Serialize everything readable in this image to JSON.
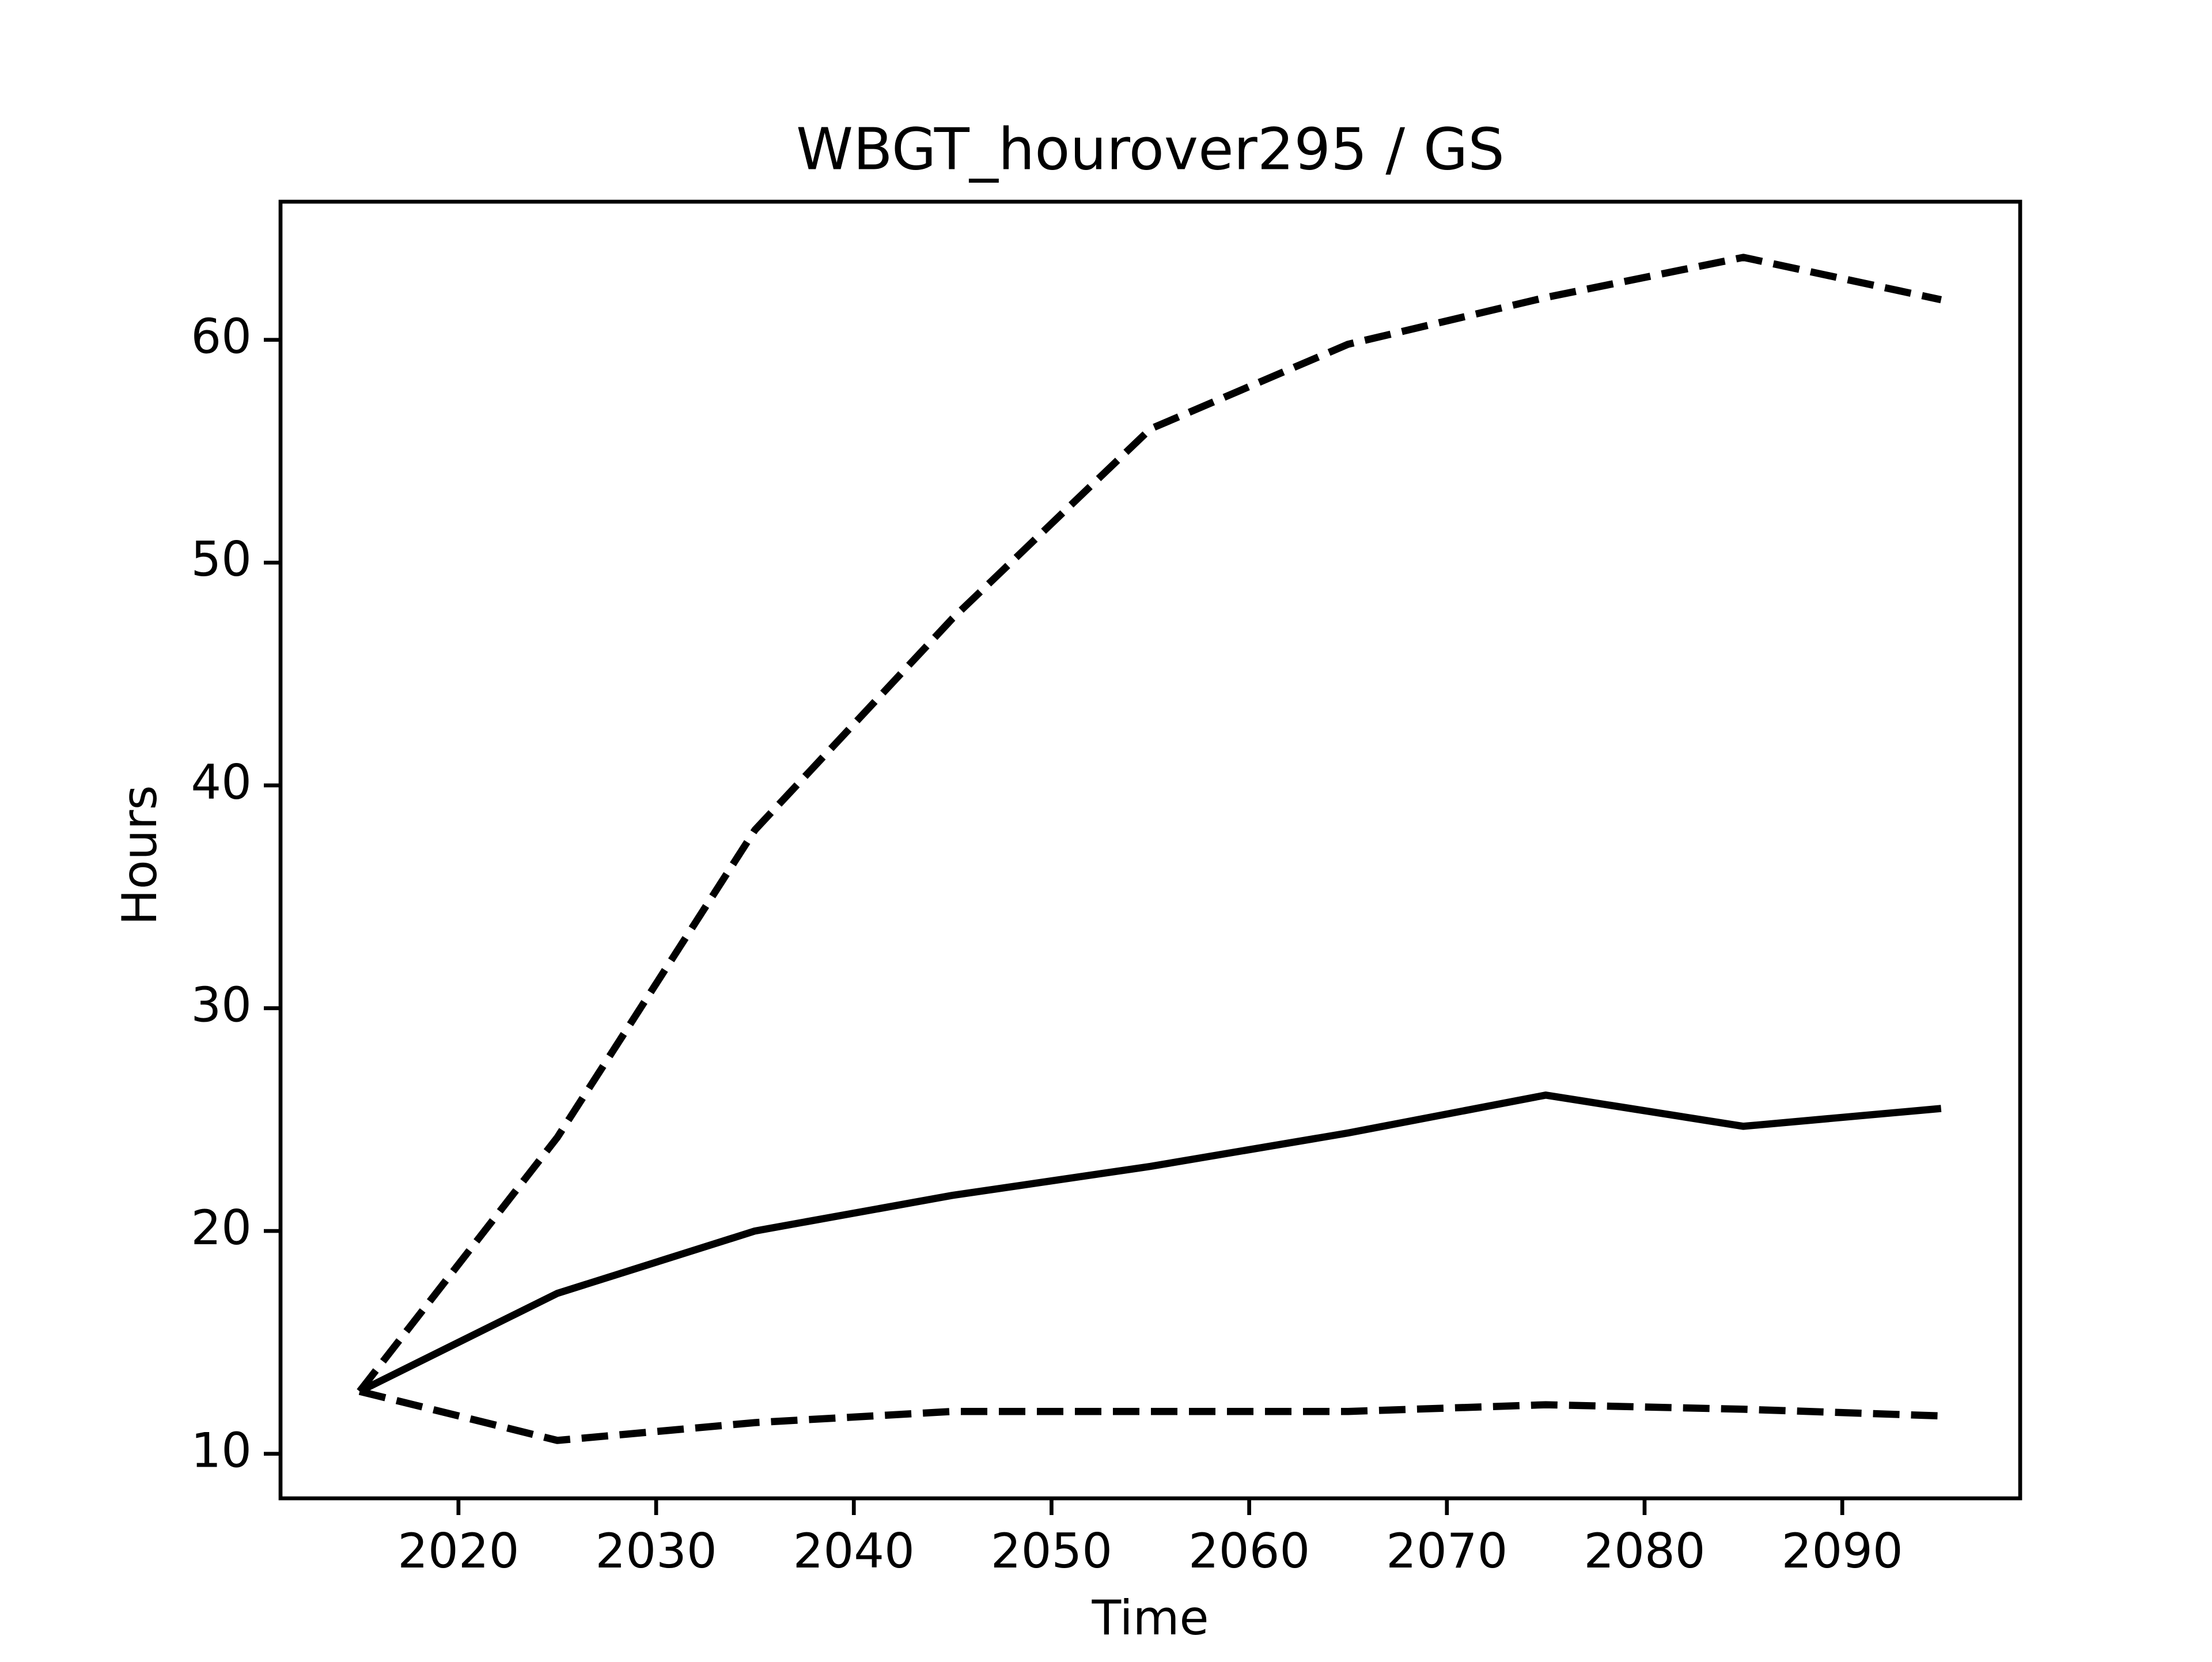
{
  "chart_data": {
    "type": "line",
    "title": "WBGT_hourover295 / GS",
    "x_label": "Time",
    "y_label": "Hours",
    "x": [
      2015,
      2025,
      2035,
      2045,
      2055,
      2065,
      2075,
      2085,
      2095
    ],
    "series": [
      {
        "color": "#000000",
        "linestyle": "solid",
        "values": [
          12.8,
          17.2,
          20.0,
          21.6,
          22.9,
          24.4,
          26.1,
          24.7,
          25.5
        ]
      },
      {
        "color": "#000000",
        "linestyle": "dashed",
        "values": [
          12.8,
          24.2,
          38.0,
          47.5,
          56.0,
          59.8,
          61.9,
          63.7,
          61.8
        ]
      },
      {
        "color": "#000000",
        "linestyle": "dashed",
        "values": [
          12.8,
          10.6,
          11.4,
          11.9,
          11.9,
          11.9,
          12.2,
          12.0,
          11.7
        ]
      }
    ],
    "xlim": [
      2011,
      2099
    ],
    "ylim": [
      8.0,
      66.2
    ],
    "xticks": [
      2020,
      2030,
      2040,
      2050,
      2060,
      2070,
      2080,
      2090
    ],
    "yticks": [
      10,
      20,
      30,
      40,
      50,
      60
    ],
    "grid": false
  }
}
